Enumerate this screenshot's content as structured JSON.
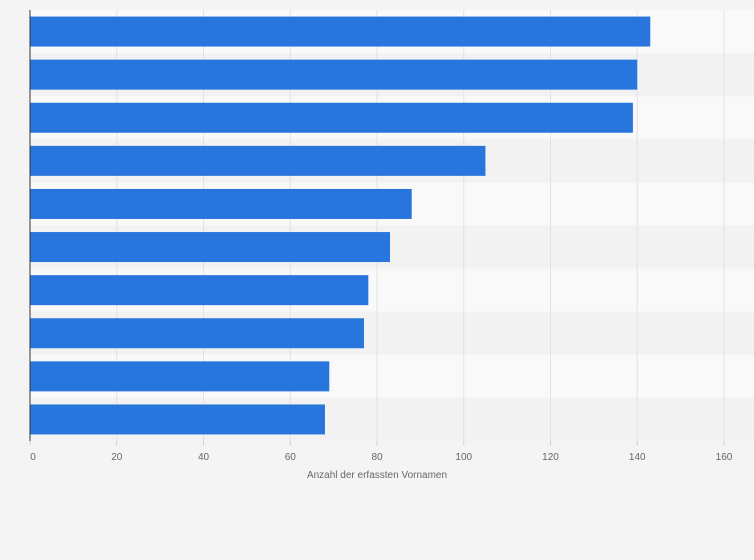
{
  "chart_data": {
    "type": "bar",
    "orientation": "horizontal",
    "categories": [
      "",
      "",
      "",
      "",
      "",
      "",
      "",
      "",
      "",
      ""
    ],
    "values": [
      143,
      140,
      139,
      105,
      88,
      83,
      78,
      77,
      69,
      68
    ],
    "title": "",
    "xlabel": "Anzahl der erfassten Vornamen",
    "ylabel": "",
    "xlim": [
      0,
      160
    ],
    "xticks": [
      "0",
      "20",
      "40",
      "60",
      "80",
      "100",
      "120",
      "140",
      "160"
    ],
    "grid": "vertical",
    "legend": "none"
  },
  "colors": {
    "bar": "#2876dd",
    "background": "#f4f4f4",
    "band_light": "#f9f9f9",
    "band_dark": "#f2f2f2",
    "grid": "#e2e2e2",
    "axis": "#333333",
    "text": "#666666"
  }
}
